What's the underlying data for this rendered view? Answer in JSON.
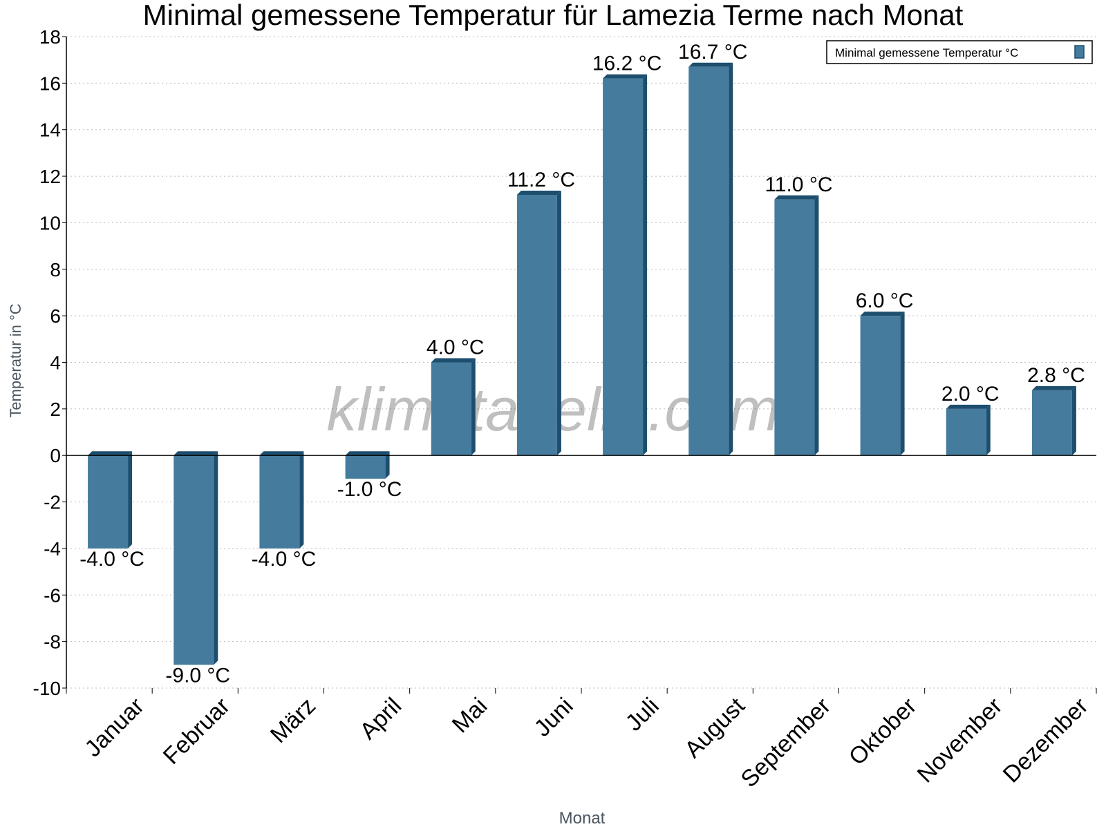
{
  "chart_data": {
    "type": "bar",
    "title": "Minimal gemessene Temperatur für Lamezia Terme nach Monat",
    "xlabel": "Monat",
    "ylabel": "Temperatur in °C",
    "ylim": [
      -10,
      18
    ],
    "yticks": [
      -10,
      -8,
      -6,
      -4,
      -2,
      0,
      2,
      4,
      6,
      8,
      10,
      12,
      14,
      16,
      18
    ],
    "grid": true,
    "legend_placement": "top-right",
    "categories": [
      "Januar",
      "Februar",
      "März",
      "April",
      "Mai",
      "Juni",
      "Juli",
      "August",
      "September",
      "Oktober",
      "November",
      "Dezember"
    ],
    "series": [
      {
        "name": "Minimal gemessene Temperatur °C",
        "values": [
          -4.0,
          -9.0,
          -4.0,
          -1.0,
          4.0,
          11.2,
          16.2,
          16.7,
          11.0,
          6.0,
          2.0,
          2.8
        ],
        "labels": [
          "-4.0 °C",
          "-9.0 °C",
          "-4.0 °C",
          "-1.0 °C",
          "4.0 °C",
          "11.2 °C",
          "16.2 °C",
          "16.7 °C",
          "11.0 °C",
          "6.0 °C",
          "2.0 °C",
          "2.8 °C"
        ],
        "color": "#457b9d",
        "side_color": "#1d4e6e"
      }
    ],
    "watermark": "klimatabelle.com"
  }
}
